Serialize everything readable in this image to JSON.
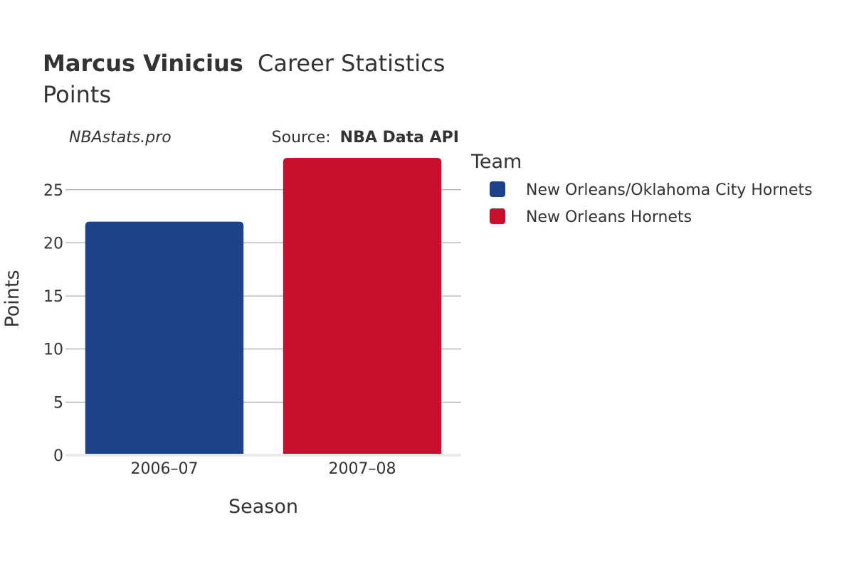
{
  "header": {
    "player_name": "Marcus Vinicius",
    "title_suffix": "Career Statistics",
    "subtitle": "Points",
    "site": "NBAstats.pro",
    "source_prefix": "Source:",
    "source_name": "NBA Data API"
  },
  "chart_data": {
    "type": "bar",
    "xlabel": "Season",
    "ylabel": "Points",
    "categories": [
      "2006–07",
      "2007–08"
    ],
    "ylim": [
      0,
      28
    ],
    "yticks": [
      0,
      5,
      10,
      15,
      20,
      25
    ],
    "grid": true,
    "legend_title": "Team",
    "legend_position": "right",
    "series": [
      {
        "name": "New Orleans/Oklahoma City Hornets",
        "color": "#1d428a",
        "values": [
          22,
          null
        ]
      },
      {
        "name": "New Orleans Hornets",
        "color": "#c8102e",
        "values": [
          null,
          28
        ]
      }
    ]
  }
}
